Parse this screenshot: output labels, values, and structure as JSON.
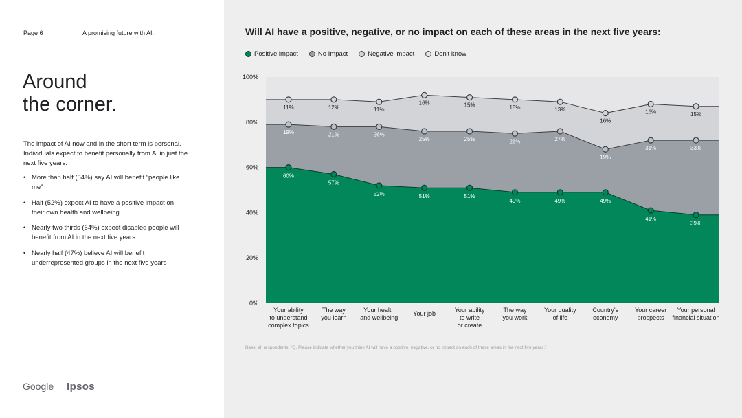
{
  "page": {
    "number": "Page 6",
    "section": "A promising future with AI.",
    "headline": [
      "Around",
      "the corner."
    ],
    "intro": "The impact of AI now and in the short term is personal. Individuals expect to benefit personally from AI in just the next five years:",
    "bullets": [
      "More than half (54%) say AI will benefit “people like me”",
      "Half (52%) expect AI to have a positive impact on their own health and wellbeing",
      "Nearly two thirds (64%) expect disabled people will benefit from AI in the next five years",
      "Nearly half (47%) believe AI will benefit underrepresented groups in the next five years"
    ],
    "logos": {
      "google": "Google",
      "ipsos": "Ipsos"
    }
  },
  "chart_data": {
    "type": "area",
    "stacked": true,
    "title": "Will AI have a positive, negative, or no impact on each of these areas in the next five years:",
    "categories": [
      [
        "Your ability",
        "to understand",
        "complex topics"
      ],
      [
        "The way",
        "you learn"
      ],
      [
        "Your health",
        "and wellbeing"
      ],
      [
        "Your job"
      ],
      [
        "Your ability",
        "to write",
        "or create"
      ],
      [
        "The way",
        "you work"
      ],
      [
        "Your quality",
        "of life"
      ],
      [
        "Country's",
        "economy"
      ],
      [
        "Your career",
        "prospects"
      ],
      [
        "Your personal",
        "financial situation"
      ]
    ],
    "series": [
      {
        "name": "Positive impact",
        "color": "#01875a",
        "values": [
          60,
          57,
          52,
          51,
          51,
          49,
          49,
          49,
          41,
          39
        ]
      },
      {
        "name": "No Impact",
        "color": "#9aa0a6",
        "values": [
          19,
          21,
          26,
          25,
          25,
          26,
          27,
          19,
          31,
          33
        ]
      },
      {
        "name": "Negative impact",
        "color": "#d3d4d7",
        "values": [
          11,
          12,
          11,
          16,
          15,
          15,
          13,
          16,
          16,
          15
        ]
      },
      {
        "name": "Don't know",
        "color": "#e6e6e8"
      }
    ],
    "ylim": [
      0,
      100
    ],
    "yticks": [
      "0%",
      "20%",
      "40%",
      "60%",
      "80%",
      "100%"
    ],
    "xlabel": "",
    "ylabel": "",
    "legend_position": "top-left",
    "footnote": "Base: all respondents. “Q. Please indicate whether you think AI will have a positive, negative, or no impact on each of these areas in the next five years.”"
  }
}
